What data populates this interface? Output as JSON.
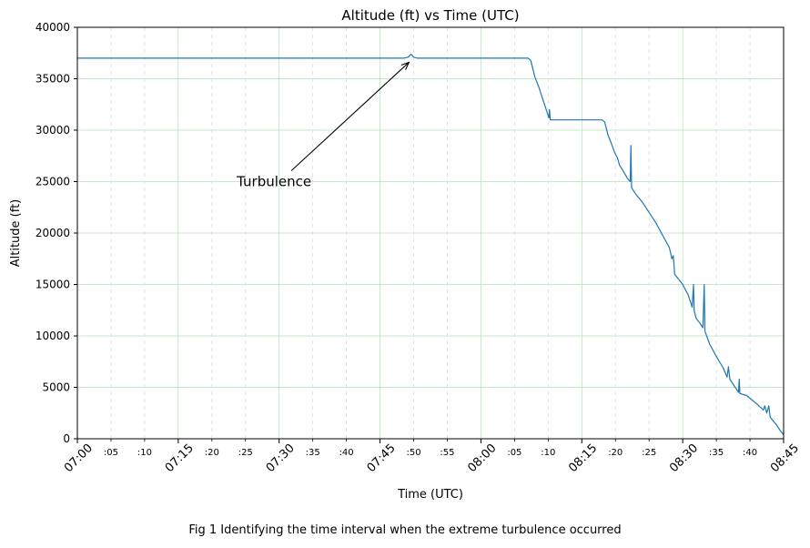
{
  "chart_data": {
    "type": "line",
    "title": "Altitude (ft) vs Time (UTC)",
    "xlabel": "Time (UTC)",
    "ylabel": "Altitude (ft)",
    "xlim_minutes_after_0700": [
      0,
      105
    ],
    "ylim": [
      0,
      40000
    ],
    "y_ticks": [
      0,
      5000,
      10000,
      15000,
      20000,
      25000,
      30000,
      35000,
      40000
    ],
    "x_major_ticks": [
      {
        "m": 0,
        "label": "07:00"
      },
      {
        "m": 15,
        "label": "07:15"
      },
      {
        "m": 30,
        "label": "07:30"
      },
      {
        "m": 45,
        "label": "07:45"
      },
      {
        "m": 60,
        "label": "08:00"
      },
      {
        "m": 75,
        "label": "08:15"
      },
      {
        "m": 90,
        "label": "08:30"
      },
      {
        "m": 105,
        "label": "08:45"
      }
    ],
    "x_minor_ticks": [
      {
        "m": 5,
        "label": ":05"
      },
      {
        "m": 10,
        "label": ":10"
      },
      {
        "m": 20,
        "label": ":20"
      },
      {
        "m": 25,
        "label": ":25"
      },
      {
        "m": 35,
        "label": ":35"
      },
      {
        "m": 40,
        "label": ":40"
      },
      {
        "m": 50,
        "label": ":50"
      },
      {
        "m": 55,
        "label": ":55"
      },
      {
        "m": 65,
        "label": ":05"
      },
      {
        "m": 70,
        "label": ":10"
      },
      {
        "m": 80,
        "label": ":20"
      },
      {
        "m": 85,
        "label": ":25"
      },
      {
        "m": 95,
        "label": ":35"
      },
      {
        "m": 100,
        "label": ":40"
      }
    ],
    "grid": true,
    "series": [
      {
        "color": "#1f77b4",
        "points": [
          [
            0,
            37000
          ],
          [
            48.5,
            37000
          ],
          [
            49.2,
            37100
          ],
          [
            49.6,
            37400
          ],
          [
            50.0,
            37100
          ],
          [
            50.6,
            37000
          ],
          [
            67.0,
            37000
          ],
          [
            67.4,
            36800
          ],
          [
            68.0,
            35200
          ],
          [
            68.6,
            34200
          ],
          [
            69.2,
            33000
          ],
          [
            69.8,
            31800
          ],
          [
            70.1,
            31200
          ],
          [
            70.2,
            32000
          ],
          [
            70.3,
            31000
          ],
          [
            73.0,
            31000
          ],
          [
            78.0,
            31000
          ],
          [
            78.4,
            30800
          ],
          [
            78.9,
            29500
          ],
          [
            79.4,
            28700
          ],
          [
            79.9,
            27800
          ],
          [
            80.3,
            27300
          ],
          [
            80.6,
            26600
          ],
          [
            81.0,
            26200
          ],
          [
            81.8,
            25300
          ],
          [
            82.2,
            25000
          ],
          [
            82.3,
            28500
          ],
          [
            82.4,
            24400
          ],
          [
            83.0,
            23800
          ],
          [
            84.0,
            23000
          ],
          [
            85.0,
            22000
          ],
          [
            86.0,
            21000
          ],
          [
            87.0,
            19800
          ],
          [
            88.0,
            18600
          ],
          [
            88.4,
            17500
          ],
          [
            88.6,
            17800
          ],
          [
            88.8,
            16000
          ],
          [
            89.4,
            15500
          ],
          [
            90.0,
            15000
          ],
          [
            90.8,
            14000
          ],
          [
            91.4,
            12800
          ],
          [
            91.6,
            15000
          ],
          [
            91.7,
            12500
          ],
          [
            92.0,
            11700
          ],
          [
            92.6,
            11200
          ],
          [
            93.0,
            10800
          ],
          [
            93.2,
            15000
          ],
          [
            93.3,
            10500
          ],
          [
            94.0,
            9200
          ],
          [
            95.0,
            8000
          ],
          [
            96.0,
            6900
          ],
          [
            96.6,
            6000
          ],
          [
            96.8,
            7000
          ],
          [
            97.0,
            5800
          ],
          [
            97.8,
            5000
          ],
          [
            98.3,
            4500
          ],
          [
            98.4,
            5800
          ],
          [
            98.5,
            4400
          ],
          [
            99.5,
            4200
          ],
          [
            101.0,
            3400
          ],
          [
            102.0,
            2800
          ],
          [
            102.2,
            3200
          ],
          [
            102.5,
            2500
          ],
          [
            102.8,
            3200
          ],
          [
            103.0,
            2100
          ],
          [
            104.0,
            1300
          ],
          [
            104.5,
            800
          ],
          [
            105.0,
            400
          ]
        ]
      }
    ],
    "annotation": {
      "text": "Turbulence",
      "x": 49.3,
      "y": 36600,
      "text_x": 23.7,
      "text_y": 25000
    }
  },
  "caption": "Fig 1 Identifying the time interval when the extreme turbulence occurred"
}
